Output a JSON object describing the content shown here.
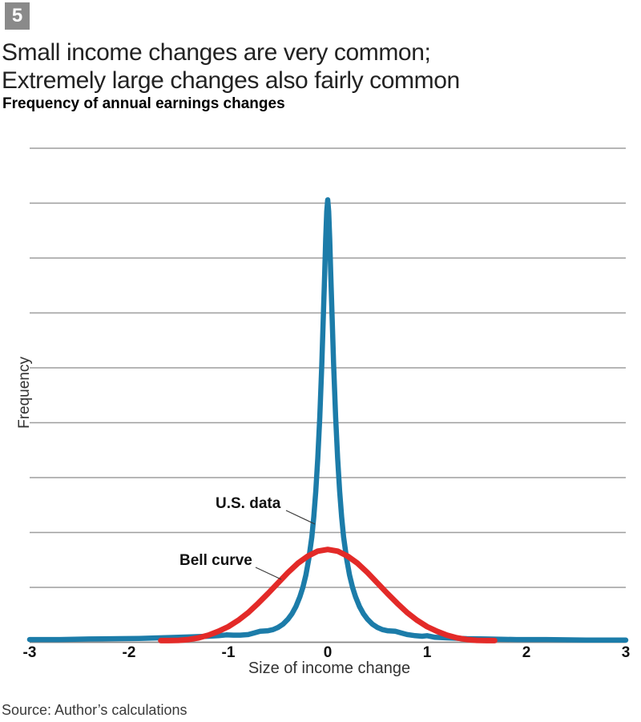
{
  "figure_number": "5",
  "title_line1": "Small income changes are very common;",
  "title_line2": "Extremely large changes also fairly common",
  "subtitle": "Frequency of annual earnings changes",
  "source": "Source: Author’s calculations",
  "colors": {
    "us_data_blue": "#1c7ca9",
    "bell_curve_red": "#e32a28",
    "badge_gray": "#8a8a8a",
    "gridline_gray": "#9e9e9e",
    "axis_gray": "#878787"
  },
  "chart_data": {
    "type": "line",
    "title": "Frequency of annual earnings changes",
    "xlabel": "Size of income change",
    "ylabel": "Frequency",
    "xlim": [
      -3,
      3
    ],
    "ylim": [
      0,
      9
    ],
    "grid": "horizontal-only",
    "legend": "inline-annotations",
    "x_ticks": [
      -3,
      -2,
      -1,
      0,
      1,
      2,
      3
    ],
    "x_tick_labels": [
      "-3",
      "-2",
      "-1",
      "0",
      "1",
      "2",
      "3"
    ],
    "gridline_y_values": [
      1,
      2,
      3,
      4,
      5,
      6,
      7,
      8,
      9
    ],
    "annotations": [
      {
        "label": "U.S. data",
        "series": "us_data",
        "points_at": [
          0.04,
          6.0
        ]
      },
      {
        "label": "Bell curve",
        "series": "bell_curve",
        "points_at": [
          -0.45,
          1.15
        ]
      }
    ],
    "series": [
      {
        "name": "U.S. data",
        "color": "#1c7ca9",
        "points": [
          [
            -3,
            0.05
          ],
          [
            -2.7,
            0.05
          ],
          [
            -2.4,
            0.06
          ],
          [
            -2.1,
            0.065
          ],
          [
            -1.9,
            0.07
          ],
          [
            -1.7,
            0.08
          ],
          [
            -1.5,
            0.09
          ],
          [
            -1.35,
            0.1
          ],
          [
            -1.2,
            0.11
          ],
          [
            -1.1,
            0.12
          ],
          [
            -1.02,
            0.135
          ],
          [
            -0.95,
            0.13
          ],
          [
            -0.88,
            0.13
          ],
          [
            -0.8,
            0.14
          ],
          [
            -0.74,
            0.17
          ],
          [
            -0.68,
            0.2
          ],
          [
            -0.6,
            0.21
          ],
          [
            -0.55,
            0.23
          ],
          [
            -0.5,
            0.27
          ],
          [
            -0.45,
            0.33
          ],
          [
            -0.4,
            0.42
          ],
          [
            -0.36,
            0.52
          ],
          [
            -0.32,
            0.65
          ],
          [
            -0.28,
            0.83
          ],
          [
            -0.25,
            1.0
          ],
          [
            -0.22,
            1.22
          ],
          [
            -0.19,
            1.52
          ],
          [
            -0.16,
            1.92
          ],
          [
            -0.14,
            2.28
          ],
          [
            -0.12,
            2.75
          ],
          [
            -0.1,
            3.35
          ],
          [
            -0.08,
            4.1
          ],
          [
            -0.06,
            5.05
          ],
          [
            -0.05,
            5.6
          ],
          [
            -0.04,
            6.15
          ],
          [
            -0.03,
            6.75
          ],
          [
            -0.02,
            7.35
          ],
          [
            -0.01,
            7.85
          ],
          [
            0,
            8.06
          ],
          [
            0.01,
            7.85
          ],
          [
            0.02,
            7.35
          ],
          [
            0.03,
            6.75
          ],
          [
            0.04,
            6.15
          ],
          [
            0.05,
            5.6
          ],
          [
            0.06,
            5.05
          ],
          [
            0.08,
            4.1
          ],
          [
            0.1,
            3.35
          ],
          [
            0.12,
            2.75
          ],
          [
            0.14,
            2.28
          ],
          [
            0.16,
            1.92
          ],
          [
            0.19,
            1.52
          ],
          [
            0.22,
            1.22
          ],
          [
            0.25,
            1.0
          ],
          [
            0.28,
            0.83
          ],
          [
            0.32,
            0.65
          ],
          [
            0.36,
            0.52
          ],
          [
            0.4,
            0.42
          ],
          [
            0.45,
            0.33
          ],
          [
            0.5,
            0.27
          ],
          [
            0.55,
            0.23
          ],
          [
            0.6,
            0.21
          ],
          [
            0.68,
            0.2
          ],
          [
            0.74,
            0.17
          ],
          [
            0.8,
            0.14
          ],
          [
            0.88,
            0.12
          ],
          [
            0.95,
            0.11
          ],
          [
            1.0,
            0.12
          ],
          [
            1.08,
            0.09
          ],
          [
            1.2,
            0.08
          ],
          [
            1.4,
            0.065
          ],
          [
            1.6,
            0.06
          ],
          [
            1.9,
            0.05
          ],
          [
            2.2,
            0.05
          ],
          [
            2.6,
            0.04
          ],
          [
            3,
            0.04
          ]
        ]
      },
      {
        "name": "Bell curve",
        "color": "#e32a28",
        "points": [
          [
            -1.68,
            0.03
          ],
          [
            -1.6,
            0.03
          ],
          [
            -1.5,
            0.035
          ],
          [
            -1.4,
            0.05
          ],
          [
            -1.3,
            0.08
          ],
          [
            -1.2,
            0.13
          ],
          [
            -1.1,
            0.2
          ],
          [
            -1.0,
            0.285
          ],
          [
            -0.9,
            0.4
          ],
          [
            -0.8,
            0.54
          ],
          [
            -0.7,
            0.71
          ],
          [
            -0.6,
            0.89
          ],
          [
            -0.5,
            1.08
          ],
          [
            -0.4,
            1.27
          ],
          [
            -0.3,
            1.44
          ],
          [
            -0.2,
            1.57
          ],
          [
            -0.1,
            1.66
          ],
          [
            0,
            1.69
          ],
          [
            0.1,
            1.66
          ],
          [
            0.2,
            1.57
          ],
          [
            0.3,
            1.44
          ],
          [
            0.4,
            1.27
          ],
          [
            0.5,
            1.08
          ],
          [
            0.6,
            0.89
          ],
          [
            0.7,
            0.71
          ],
          [
            0.8,
            0.54
          ],
          [
            0.9,
            0.4
          ],
          [
            1.0,
            0.285
          ],
          [
            1.1,
            0.2
          ],
          [
            1.2,
            0.13
          ],
          [
            1.3,
            0.08
          ],
          [
            1.4,
            0.05
          ],
          [
            1.5,
            0.035
          ],
          [
            1.6,
            0.03
          ],
          [
            1.68,
            0.03
          ]
        ]
      }
    ]
  }
}
